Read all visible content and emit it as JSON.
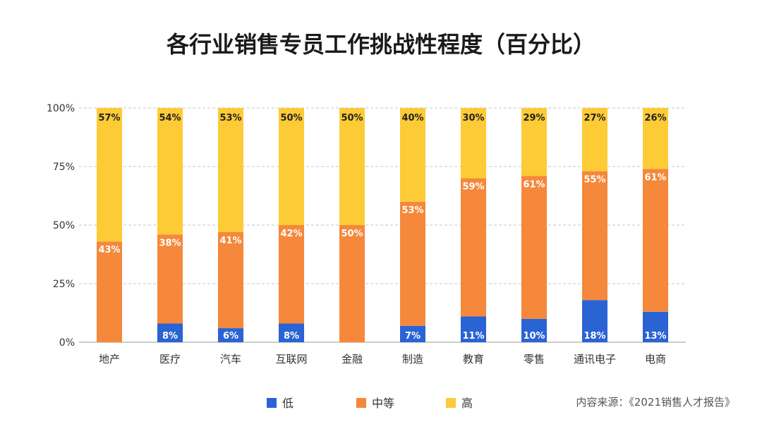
{
  "chart_data": {
    "type": "bar",
    "stacked": true,
    "title": "各行业销售专员工作挑战性程度（百分比）",
    "categories": [
      "地产",
      "医疗",
      "汽车",
      "互联网",
      "金融",
      "制造",
      "教育",
      "零售",
      "通讯电子",
      "电商"
    ],
    "series": [
      {
        "name": "低",
        "color": "#2a63d4",
        "values": [
          0,
          8,
          6,
          8,
          0,
          7,
          11,
          10,
          18,
          13
        ],
        "labels": [
          "",
          "8%",
          "6%",
          "8%",
          "",
          "7%",
          "11%",
          "10%",
          "18%",
          "13%"
        ]
      },
      {
        "name": "中等",
        "color": "#f5883a",
        "values": [
          43,
          38,
          41,
          42,
          50,
          53,
          59,
          61,
          55,
          61
        ],
        "labels": [
          "43%",
          "38%",
          "41%",
          "42%",
          "50%",
          "53%",
          "59%",
          "61%",
          "55%",
          "61%"
        ]
      },
      {
        "name": "高",
        "color": "#fdcb36",
        "values": [
          57,
          54,
          53,
          50,
          50,
          40,
          30,
          29,
          27,
          26
        ],
        "labels": [
          "57%",
          "54%",
          "53%",
          "50%",
          "50%",
          "40%",
          "30%",
          "29%",
          "27%",
          "26%"
        ]
      }
    ],
    "ylim": [
      0,
      100
    ],
    "yticks": [
      0,
      25,
      50,
      75,
      100
    ],
    "ytick_labels": [
      "0%",
      "25%",
      "50%",
      "75%",
      "100%"
    ],
    "grid": true,
    "legend_position": "bottom"
  },
  "source": "内容来源：《2021销售人才报告》"
}
